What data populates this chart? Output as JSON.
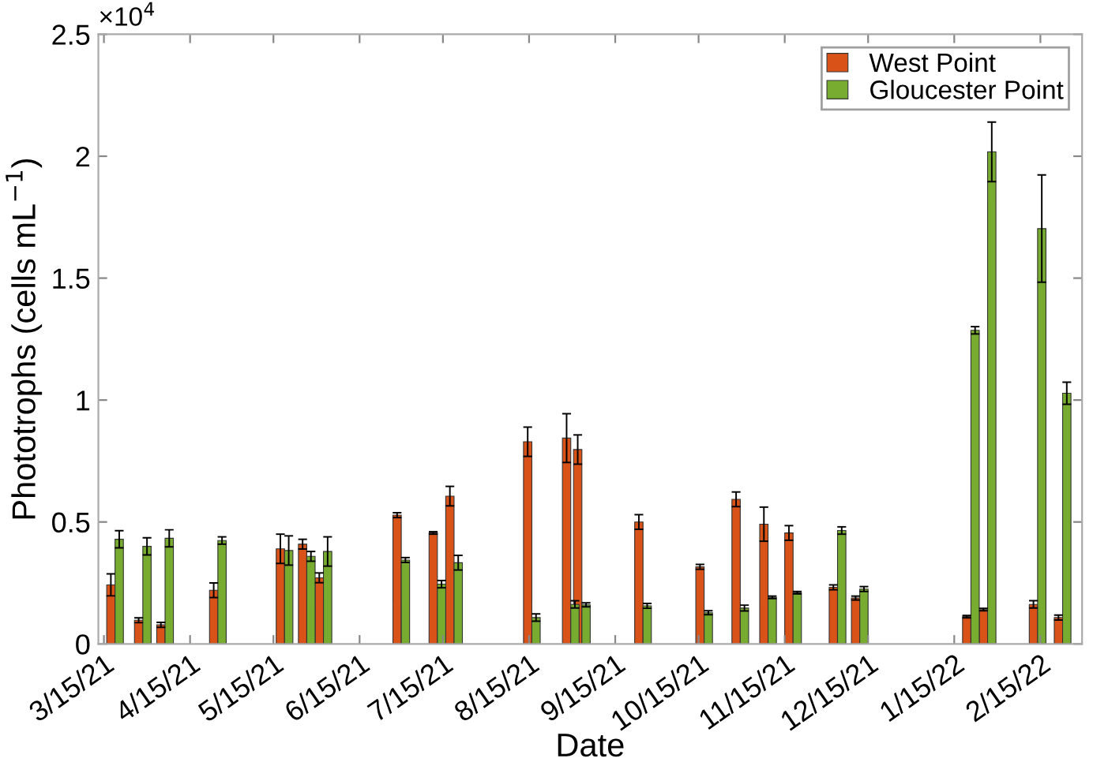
{
  "chart_data": {
    "type": "bar",
    "xlabel": "Date",
    "ylabel": "Phototrophs (cells mL$^{−1}$)",
    "annotations": [
      "×10$^{4}$"
    ],
    "x": [
      "2021-03-19",
      "2021-03-29",
      "2021-04-06",
      "2021-04-25",
      "2021-05-19",
      "2021-05-27",
      "2021-06-02",
      "2021-06-30",
      "2021-07-13",
      "2021-07-19",
      "2021-08-16",
      "2021-08-30",
      "2021-09-03",
      "2021-09-25",
      "2021-10-17",
      "2021-10-30",
      "2021-11-09",
      "2021-11-18",
      "2021-12-04",
      "2021-12-12",
      "2022-01-21",
      "2022-01-27",
      "2022-02-14",
      "2022-02-23"
    ],
    "series": [
      {
        "name": "West Point",
        "color": "#d95319",
        "values": [
          0.242,
          0.097,
          0.078,
          0.22,
          0.39,
          0.409,
          0.271,
          0.528,
          0.455,
          0.606,
          0.829,
          0.844,
          0.797,
          0.5,
          0.316,
          0.593,
          0.491,
          0.455,
          0.232,
          0.188,
          0.112,
          0.141,
          0.162,
          0.108
        ],
        "errors": [
          0.045,
          0.01,
          0.01,
          0.03,
          0.06,
          0.02,
          0.02,
          0.01,
          0.005,
          0.04,
          0.06,
          0.1,
          0.06,
          0.03,
          0.01,
          0.03,
          0.07,
          0.03,
          0.01,
          0.008,
          0.005,
          0.005,
          0.015,
          0.01
        ]
      },
      {
        "name": "Gloucester Point",
        "color": "#77ac30",
        "values": [
          0.429,
          0.4,
          0.433,
          0.424,
          0.383,
          0.359,
          0.379,
          0.344,
          0.245,
          0.333,
          0.108,
          0.162,
          0.16,
          0.156,
          0.128,
          0.147,
          0.191,
          0.21,
          0.465,
          0.225,
          1.286,
          2.018,
          1.703,
          1.028
        ],
        "errors": [
          0.035,
          0.035,
          0.035,
          0.015,
          0.06,
          0.02,
          0.06,
          0.01,
          0.015,
          0.03,
          0.015,
          0.015,
          0.008,
          0.01,
          0.008,
          0.012,
          0.005,
          0.005,
          0.015,
          0.01,
          0.015,
          0.122,
          0.22,
          0.045
        ]
      }
    ],
    "xlim": [
      "2021-03-13",
      "2022-03-02"
    ],
    "xticks": [
      {
        "value": "2021-03-15",
        "label": "3/15/21"
      },
      {
        "value": "2021-04-15",
        "label": "4/15/21"
      },
      {
        "value": "2021-05-15",
        "label": "5/15/21"
      },
      {
        "value": "2021-06-15",
        "label": "6/15/21"
      },
      {
        "value": "2021-07-15",
        "label": "7/15/21"
      },
      {
        "value": "2021-08-15",
        "label": "8/15/21"
      },
      {
        "value": "2021-09-15",
        "label": "9/15/21"
      },
      {
        "value": "2021-10-15",
        "label": "10/15/21"
      },
      {
        "value": "2021-11-15",
        "label": "11/15/21"
      },
      {
        "value": "2021-12-15",
        "label": "12/15/21"
      },
      {
        "value": "2022-01-15",
        "label": "1/15/22"
      },
      {
        "value": "2022-02-15",
        "label": "2/15/22"
      }
    ],
    "ylim": [
      0,
      2.5
    ],
    "yticks": [
      0,
      0.5,
      1,
      1.5,
      2,
      2.5
    ],
    "legend": "top right",
    "grid": false
  }
}
